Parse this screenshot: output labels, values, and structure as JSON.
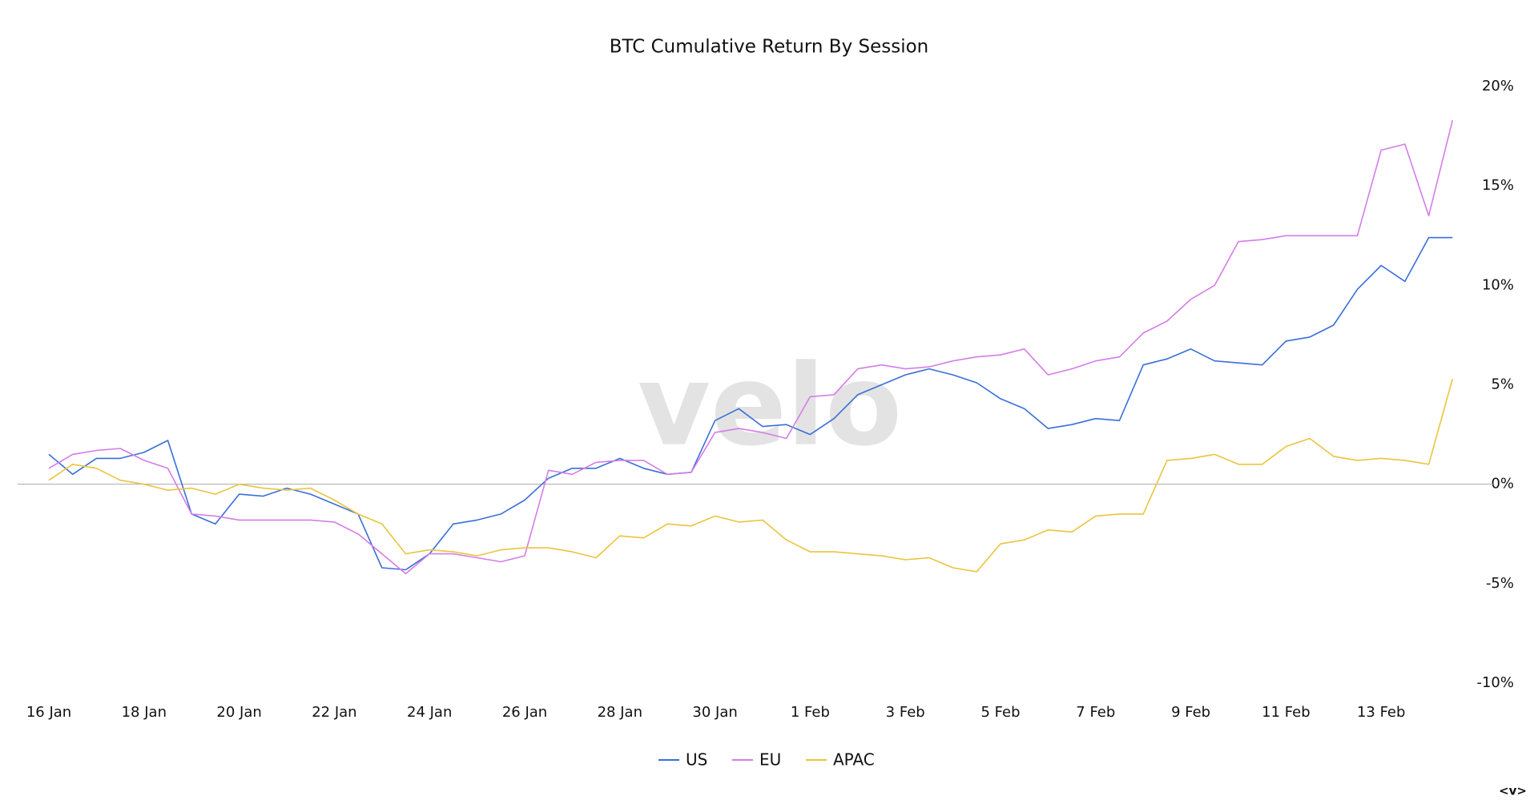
{
  "chart_data": {
    "type": "line",
    "title": "BTC Cumulative Return By Session",
    "watermark": "velo",
    "toggle": "<v>",
    "categories": [
      "16 Jan",
      null,
      null,
      null,
      "18 Jan",
      null,
      null,
      null,
      "20 Jan",
      null,
      null,
      null,
      "22 Jan",
      null,
      null,
      null,
      "24 Jan",
      null,
      null,
      null,
      "26 Jan",
      null,
      null,
      null,
      "28 Jan",
      null,
      null,
      null,
      "30 Jan",
      null,
      null,
      null,
      "1 Feb",
      null,
      null,
      null,
      "3 Feb",
      null,
      null,
      null,
      "5 Feb",
      null,
      null,
      null,
      "7 Feb",
      null,
      null,
      null,
      "9 Feb",
      null,
      null,
      null,
      "11 Feb",
      null,
      null,
      null,
      "13 Feb",
      null,
      null,
      null
    ],
    "series": [
      {
        "name": "US",
        "color": "#3a6fd8",
        "values": [
          1.5,
          0.5,
          1.3,
          1.3,
          1.6,
          2.2,
          -1.5,
          -2.0,
          -0.5,
          -0.6,
          -0.2,
          -0.5,
          -1.0,
          -1.5,
          -4.2,
          -4.3,
          -3.5,
          -2.0,
          -1.8,
          -1.5,
          -0.8,
          0.3,
          0.8,
          0.8,
          1.3,
          0.8,
          0.5,
          0.6,
          3.2,
          3.8,
          2.9,
          3.0,
          2.5,
          3.3,
          4.5,
          5.0,
          5.5,
          5.8,
          5.5,
          5.1,
          4.3,
          3.8,
          2.8,
          3.0,
          3.3,
          3.2,
          6.0,
          6.3,
          6.8,
          6.2,
          6.1,
          6.0,
          7.2,
          7.4,
          8.0,
          9.8,
          11.0,
          10.2,
          12.4,
          12.4
        ]
      },
      {
        "name": "EU",
        "color": "#d57de8",
        "values": [
          0.8,
          1.5,
          1.7,
          1.8,
          1.2,
          0.8,
          -1.5,
          -1.6,
          -1.8,
          -1.8,
          -1.8,
          -1.8,
          -1.9,
          -2.5,
          -3.5,
          -4.5,
          -3.5,
          -3.5,
          -3.7,
          -3.9,
          -3.6,
          0.7,
          0.5,
          1.1,
          1.2,
          1.2,
          0.5,
          0.6,
          2.6,
          2.8,
          2.6,
          2.3,
          4.4,
          4.5,
          5.8,
          6.0,
          5.8,
          5.9,
          6.2,
          6.4,
          6.5,
          6.8,
          5.5,
          5.8,
          6.2,
          6.4,
          7.6,
          8.2,
          9.3,
          10.0,
          12.2,
          12.3,
          12.5,
          12.5,
          12.5,
          12.5,
          16.8,
          17.1,
          13.5,
          18.3
        ]
      },
      {
        "name": "APAC",
        "color": "#ebc43f",
        "values": [
          0.2,
          1.0,
          0.8,
          0.2,
          0,
          -0.3,
          -0.2,
          -0.5,
          0,
          -0.2,
          -0.3,
          -0.2,
          -0.8,
          -1.5,
          -2.0,
          -3.5,
          -3.3,
          -3.4,
          -3.6,
          -3.3,
          -3.2,
          -3.2,
          -3.4,
          -3.7,
          -2.6,
          -2.7,
          -2.0,
          -2.1,
          -1.6,
          -1.9,
          -1.8,
          -2.8,
          -3.4,
          -3.4,
          -3.5,
          -3.6,
          -3.8,
          -3.7,
          -4.2,
          -4.4,
          -3.0,
          -2.8,
          -2.3,
          -2.4,
          -1.6,
          -1.5,
          -1.5,
          1.2,
          1.3,
          1.5,
          1.0,
          1.0,
          1.9,
          2.3,
          1.4,
          1.2,
          1.3,
          1.2,
          1.0,
          5.3
        ]
      }
    ],
    "ylim": [
      -10,
      20
    ],
    "yticks": [
      {
        "value": -10,
        "label": "-10%"
      },
      {
        "value": -5,
        "label": "-5%"
      },
      {
        "value": 0,
        "label": "0%"
      },
      {
        "value": 5,
        "label": "5%"
      },
      {
        "value": 10,
        "label": "10%"
      },
      {
        "value": 15,
        "label": "15%"
      },
      {
        "value": 20,
        "label": "20%"
      }
    ],
    "grid": false,
    "zero_line": true,
    "legend": "bottom"
  }
}
